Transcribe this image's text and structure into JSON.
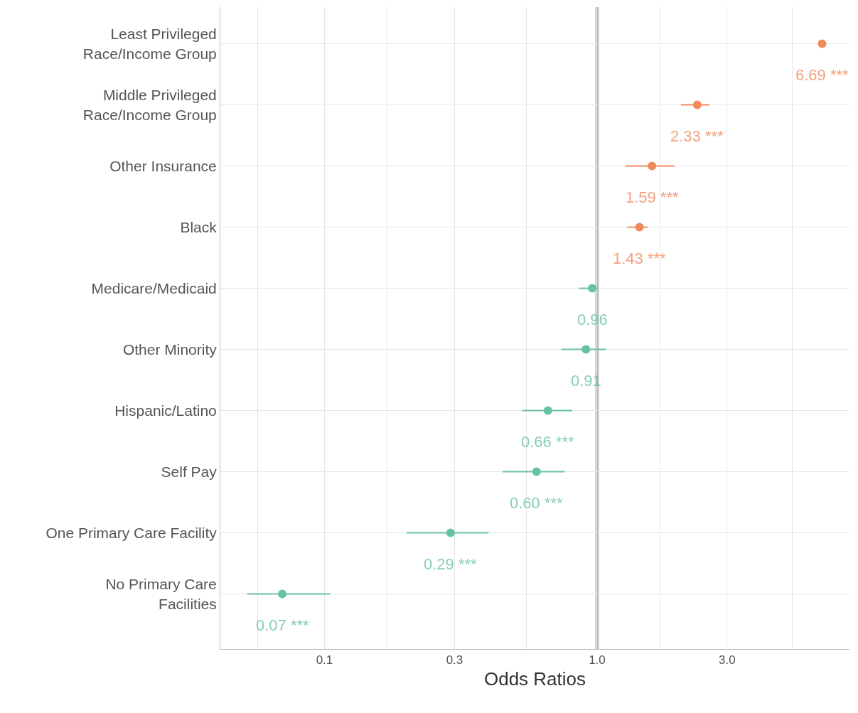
{
  "chart_data": {
    "type": "scatter",
    "orientation": "horizontal",
    "xlabel": "Odds Ratios",
    "categories": [
      "Least Privileged\nRace/Income Group",
      "Middle Privileged\nRace/Income Group",
      "Other Insurance",
      "Black",
      "Medicare/Medicaid",
      "Other Minority",
      "Hispanic/Latino",
      "Self Pay",
      "One Primary Care Facility",
      "No Primary Care\nFacilities"
    ],
    "values": [
      6.69,
      2.33,
      1.59,
      1.43,
      0.96,
      0.91,
      0.66,
      0.6,
      0.29,
      0.07
    ],
    "errors": [
      null,
      [
        2.03,
        2.58
      ],
      [
        1.27,
        1.92
      ],
      [
        1.29,
        1.53
      ],
      [
        0.86,
        1.01
      ],
      [
        0.74,
        1.08
      ],
      [
        0.53,
        0.81
      ],
      [
        0.45,
        0.76
      ],
      [
        0.2,
        0.4
      ],
      [
        0.052,
        0.105
      ]
    ],
    "colors": [
      "#f08a5d",
      "#f08a5d",
      "#f08a5d",
      "#f08a5d",
      "#66c2a5",
      "#66c2a5",
      "#66c2a5",
      "#66c2a5",
      "#66c2a5",
      "#66c2a5"
    ],
    "value_labels": [
      "6.69 ***",
      "2.33 ***",
      "1.59 ***",
      "1.43 ***",
      "0.96",
      "0.91",
      "0.66 ***",
      "0.60 ***",
      "0.29 ***",
      "0.07 ***"
    ],
    "log": "x",
    "xlim": [
      0.0415,
      8.43
    ],
    "xticks": [
      {
        "value": 0.057,
        "label": null
      },
      {
        "value": 0.1,
        "label": "0.1"
      },
      {
        "value": 0.17,
        "label": null
      },
      {
        "value": 0.3,
        "label": "0.3"
      },
      {
        "value": 0.55,
        "label": null
      },
      {
        "value": 1,
        "label": "1.0"
      },
      {
        "value": 1.7,
        "label": null
      },
      {
        "value": 3,
        "label": "3.0"
      },
      {
        "value": 5.2,
        "label": null
      }
    ],
    "ref_lines": [
      {
        "axis": "x",
        "value": 1,
        "label": null,
        "color": "#bebebe"
      }
    ],
    "grid": true,
    "marker": "circle",
    "legend": false
  }
}
